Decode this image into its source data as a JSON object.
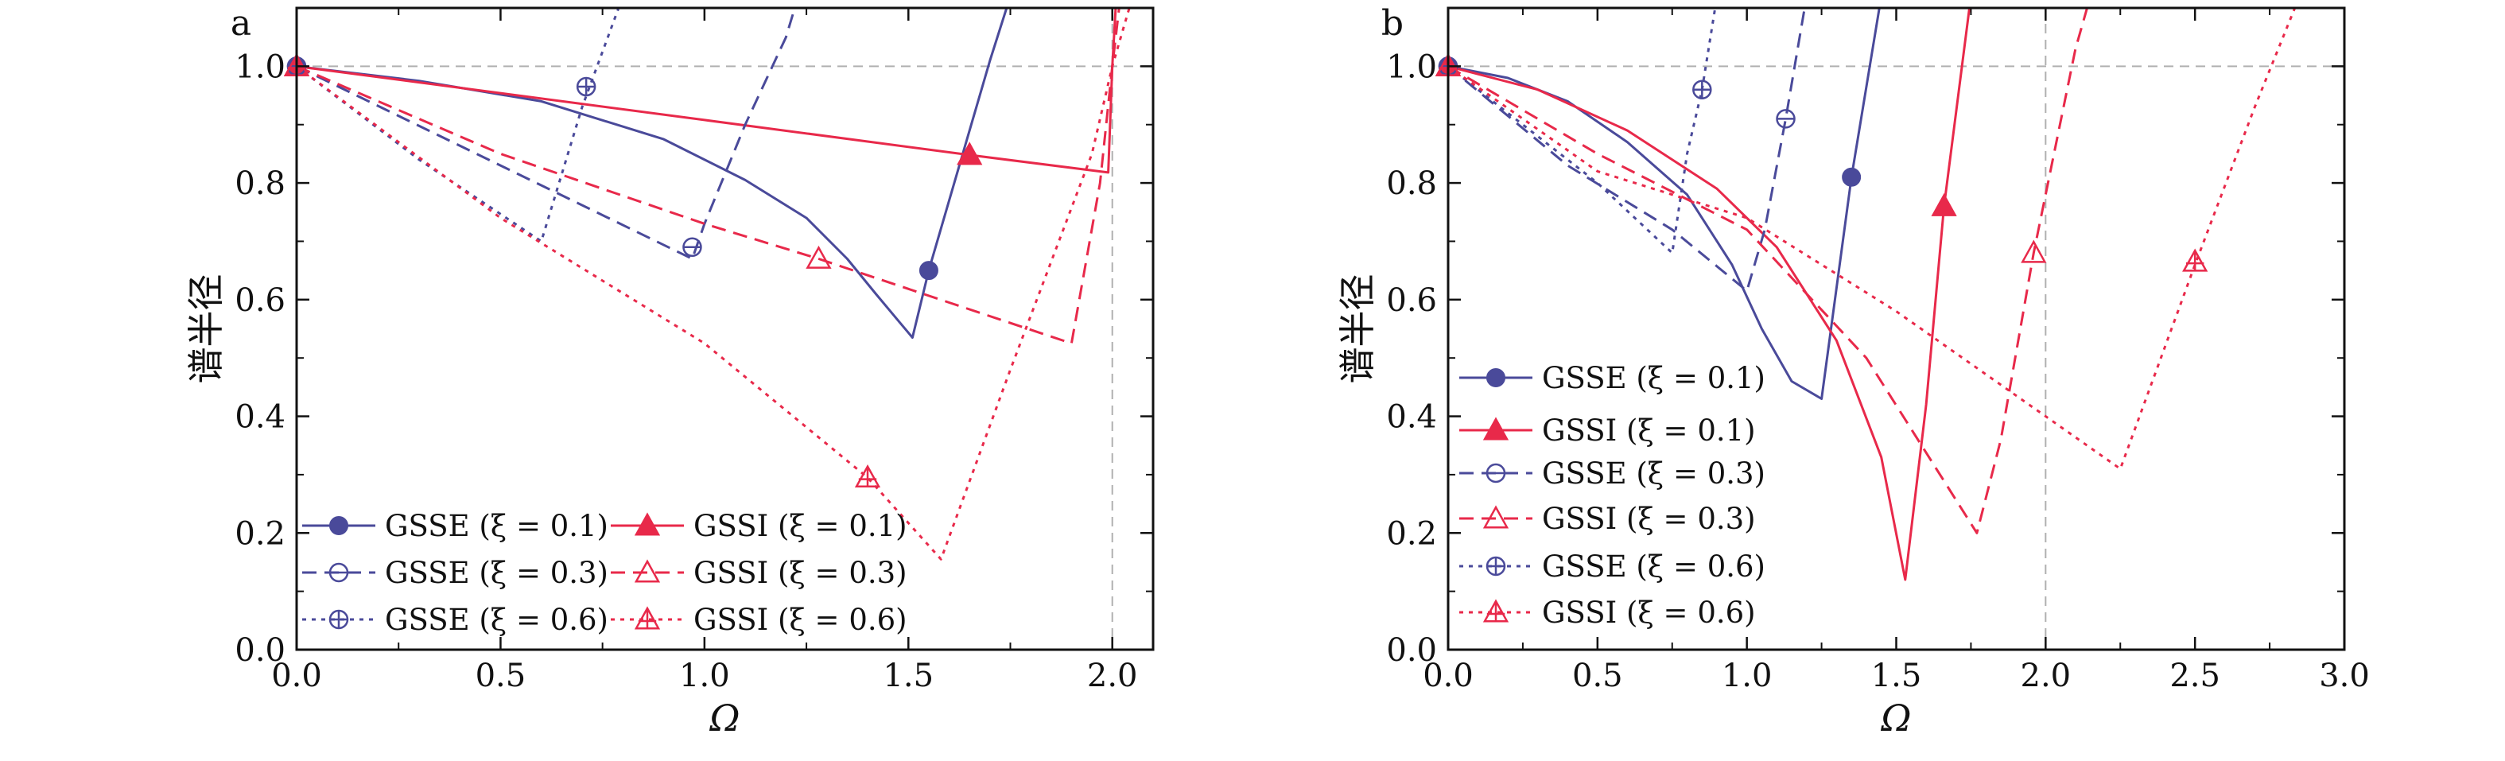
{
  "chart_data": [
    {
      "type": "line",
      "panel_label": "a",
      "xlabel": "Ω",
      "ylabel": "谱半径",
      "xlim": [
        0,
        2.1
      ],
      "ylim": [
        0,
        1.1
      ],
      "xticks": [
        "0.0",
        "0.5",
        "1.0",
        "1.5",
        "2.0"
      ],
      "yticks": [
        "0.0",
        "0.2",
        "0.4",
        "0.6",
        "0.8",
        "1.0"
      ],
      "reference_lines": {
        "h": 1.0,
        "v": 2.0
      },
      "legend_position": "bottom (two columns)",
      "series": [
        {
          "name": "GSSE (ξ = 0.1)",
          "color": "#4a4a9a",
          "dash": "solid",
          "marker": "circle-filled",
          "points": [
            [
              0,
              1
            ],
            [
              0.3,
              0.975
            ],
            [
              0.6,
              0.94
            ],
            [
              0.9,
              0.875
            ],
            [
              1.1,
              0.805
            ],
            [
              1.25,
              0.74
            ],
            [
              1.35,
              0.67
            ],
            [
              1.42,
              0.61
            ],
            [
              1.48,
              0.56
            ],
            [
              1.51,
              0.535
            ],
            [
              1.55,
              0.65
            ],
            [
              1.65,
              0.89
            ],
            [
              1.7,
              1.01
            ],
            [
              1.75,
              1.12
            ]
          ],
          "marker_at": [
            1.55,
            0.65
          ]
        },
        {
          "name": "GSSI (ξ = 0.1)",
          "color": "#e8294a",
          "dash": "solid",
          "marker": "triangle-filled",
          "points": [
            [
              0,
              1
            ],
            [
              1.0,
              0.908
            ],
            [
              1.65,
              0.848
            ],
            [
              1.99,
              0.818
            ],
            [
              2.0,
              1.0
            ],
            [
              2.01,
              1.12
            ]
          ],
          "marker_at": [
            1.65,
            0.848
          ]
        },
        {
          "name": "GSSE (ξ = 0.3)",
          "color": "#4a4a9a",
          "dash": "dashed",
          "marker": "circle-minus",
          "points": [
            [
              0,
              1
            ],
            [
              0.5,
              0.83
            ],
            [
              0.97,
              0.67
            ],
            [
              1.0,
              0.73
            ],
            [
              1.1,
              0.9
            ],
            [
              1.2,
              1.05
            ],
            [
              1.23,
              1.12
            ]
          ],
          "marker_at": [
            0.97,
            0.69
          ]
        },
        {
          "name": "GSSI (ξ = 0.3)",
          "color": "#e8294a",
          "dash": "dashed",
          "marker": "triangle-open",
          "points": [
            [
              0,
              1
            ],
            [
              0.5,
              0.85
            ],
            [
              1.0,
              0.73
            ],
            [
              1.28,
              0.67
            ],
            [
              1.6,
              0.595
            ],
            [
              1.9,
              0.525
            ],
            [
              1.97,
              0.8
            ],
            [
              2.0,
              1.0
            ],
            [
              2.02,
              1.12
            ]
          ],
          "marker_at": [
            1.28,
            0.67
          ]
        },
        {
          "name": "GSSE (ξ = 0.6)",
          "color": "#4a4a9a",
          "dash": "dotted",
          "marker": "circle-plus",
          "points": [
            [
              0,
              1
            ],
            [
              0.3,
              0.84
            ],
            [
              0.6,
              0.7
            ],
            [
              0.7,
              0.93
            ],
            [
              0.8,
              1.12
            ]
          ],
          "marker_at": [
            0.71,
            0.965
          ]
        },
        {
          "name": "GSSI (ξ = 0.6)",
          "color": "#e8294a",
          "dash": "dotted",
          "marker": "triangle-plus",
          "points": [
            [
              0,
              1
            ],
            [
              0.5,
              0.74
            ],
            [
              1.0,
              0.525
            ],
            [
              1.4,
              0.295
            ],
            [
              1.58,
              0.155
            ],
            [
              1.75,
              0.48
            ],
            [
              1.95,
              0.85
            ],
            [
              2.0,
              1.0
            ],
            [
              2.05,
              1.12
            ]
          ],
          "marker_at": [
            1.4,
            0.295
          ]
        }
      ]
    },
    {
      "type": "line",
      "panel_label": "b",
      "xlabel": "Ω",
      "ylabel": "谱半径",
      "xlim": [
        0,
        3.0
      ],
      "ylim": [
        0,
        1.1
      ],
      "xticks": [
        "0.0",
        "0.5",
        "1.0",
        "1.5",
        "2.0",
        "2.5",
        "3.0"
      ],
      "yticks": [
        "0.0",
        "0.2",
        "0.4",
        "0.6",
        "0.8",
        "1.0"
      ],
      "reference_lines": {
        "h": 1.0,
        "v": 2.0
      },
      "legend_position": "left (one column)",
      "series": [
        {
          "name": "GSSE (ξ = 0.1)",
          "color": "#4a4a9a",
          "dash": "solid",
          "marker": "circle-filled",
          "points": [
            [
              0,
              1
            ],
            [
              0.2,
              0.98
            ],
            [
              0.4,
              0.94
            ],
            [
              0.6,
              0.87
            ],
            [
              0.8,
              0.78
            ],
            [
              0.95,
              0.66
            ],
            [
              1.05,
              0.55
            ],
            [
              1.15,
              0.46
            ],
            [
              1.25,
              0.43
            ],
            [
              1.3,
              0.62
            ],
            [
              1.35,
              0.81
            ],
            [
              1.45,
              1.12
            ]
          ],
          "marker_at": [
            1.35,
            0.81
          ]
        },
        {
          "name": "GSSI (ξ = 0.1)",
          "color": "#e8294a",
          "dash": "solid",
          "marker": "triangle-filled",
          "points": [
            [
              0,
              1
            ],
            [
              0.3,
              0.96
            ],
            [
              0.6,
              0.89
            ],
            [
              0.9,
              0.79
            ],
            [
              1.1,
              0.69
            ],
            [
              1.3,
              0.53
            ],
            [
              1.45,
              0.33
            ],
            [
              1.53,
              0.12
            ],
            [
              1.6,
              0.42
            ],
            [
              1.66,
              0.76
            ],
            [
              1.75,
              1.12
            ]
          ],
          "marker_at": [
            1.66,
            0.76
          ]
        },
        {
          "name": "GSSE (ξ = 0.3)",
          "color": "#4a4a9a",
          "dash": "dashed",
          "marker": "circle-minus",
          "points": [
            [
              0,
              1
            ],
            [
              0.4,
              0.83
            ],
            [
              0.75,
              0.72
            ],
            [
              1.0,
              0.615
            ],
            [
              1.06,
              0.72
            ],
            [
              1.13,
              0.91
            ],
            [
              1.2,
              1.12
            ]
          ],
          "marker_at": [
            1.13,
            0.91
          ]
        },
        {
          "name": "GSSI (ξ = 0.3)",
          "color": "#e8294a",
          "dash": "dashed",
          "marker": "triangle-open",
          "points": [
            [
              0,
              1
            ],
            [
              0.5,
              0.85
            ],
            [
              1.0,
              0.72
            ],
            [
              1.4,
              0.5
            ],
            [
              1.77,
              0.2
            ],
            [
              1.85,
              0.36
            ],
            [
              1.96,
              0.68
            ],
            [
              2.1,
              1.03
            ],
            [
              2.15,
              1.12
            ]
          ],
          "marker_at": [
            1.96,
            0.68
          ]
        },
        {
          "name": "GSSE (ξ = 0.6)",
          "color": "#4a4a9a",
          "dash": "dotted",
          "marker": "circle-plus",
          "points": [
            [
              0,
              1
            ],
            [
              0.5,
              0.8
            ],
            [
              0.75,
              0.68
            ],
            [
              0.8,
              0.85
            ],
            [
              0.85,
              0.96
            ],
            [
              0.9,
              1.12
            ]
          ],
          "marker_at": [
            0.85,
            0.96
          ]
        },
        {
          "name": "GSSI (ξ = 0.6)",
          "color": "#e8294a",
          "dash": "dotted",
          "marker": "triangle-plus",
          "points": [
            [
              0,
              1
            ],
            [
              0.5,
              0.82
            ],
            [
              1.0,
              0.74
            ],
            [
              1.5,
              0.58
            ],
            [
              2.0,
              0.4
            ],
            [
              2.25,
              0.31
            ],
            [
              2.5,
              0.66
            ],
            [
              2.7,
              0.93
            ],
            [
              2.85,
              1.12
            ]
          ],
          "marker_at": [
            2.5,
            0.665
          ]
        }
      ]
    }
  ]
}
